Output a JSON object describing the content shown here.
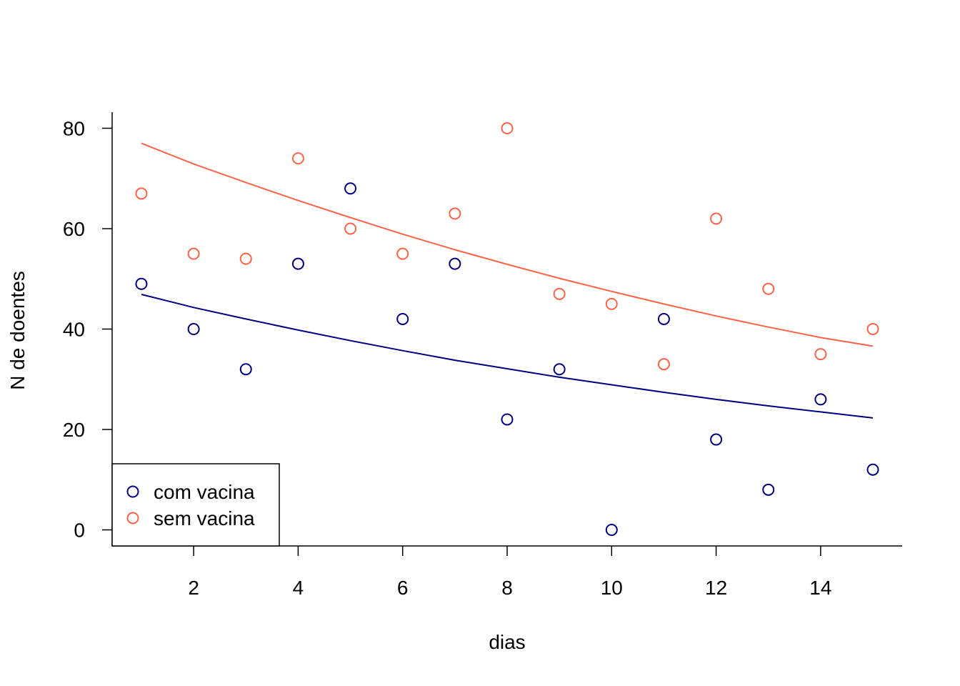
{
  "chart_data": {
    "type": "scatter",
    "title": "",
    "xlabel": "dias",
    "ylabel": "N de doentes",
    "xlim": [
      0.44,
      15.56
    ],
    "ylim": [
      -3.2,
      83.2
    ],
    "x_ticks": [
      2,
      4,
      6,
      8,
      10,
      12,
      14
    ],
    "y_ticks": [
      0,
      20,
      40,
      60,
      80
    ],
    "grid": false,
    "legend_position": "bottom-left",
    "series": [
      {
        "name": "com vacina",
        "color": "#000080",
        "x": [
          1,
          2,
          3,
          4,
          5,
          6,
          7,
          8,
          9,
          10,
          11,
          12,
          13,
          14,
          15
        ],
        "y": [
          49,
          40,
          32,
          53,
          68,
          42,
          53,
          22,
          32,
          0,
          42,
          18,
          8,
          26,
          12
        ],
        "fit": {
          "type": "line",
          "x": [
            1,
            2,
            3,
            4,
            5,
            6,
            7,
            8,
            9,
            10,
            11,
            12,
            13,
            14,
            15
          ],
          "y": [
            46.9,
            44.3,
            42.0,
            39.8,
            37.7,
            35.7,
            33.8,
            32.1,
            30.4,
            28.9,
            27.4,
            26.0,
            24.7,
            23.5,
            22.3
          ]
        }
      },
      {
        "name": "sem vacina",
        "color": "#FF6347",
        "x": [
          1,
          2,
          3,
          4,
          5,
          6,
          7,
          8,
          9,
          10,
          11,
          12,
          13,
          14,
          15
        ],
        "y": [
          67,
          55,
          54,
          74,
          60,
          55,
          63,
          80,
          47,
          45,
          33,
          62,
          48,
          35,
          40
        ],
        "fit": {
          "type": "line",
          "x": [
            1,
            2,
            3,
            4,
            5,
            6,
            7,
            8,
            9,
            10,
            11,
            12,
            13,
            14,
            15
          ],
          "y": [
            77.0,
            72.9,
            69.2,
            65.6,
            62.2,
            58.9,
            55.8,
            52.9,
            50.1,
            47.5,
            45.0,
            42.6,
            40.4,
            38.3,
            36.6
          ]
        }
      }
    ]
  }
}
